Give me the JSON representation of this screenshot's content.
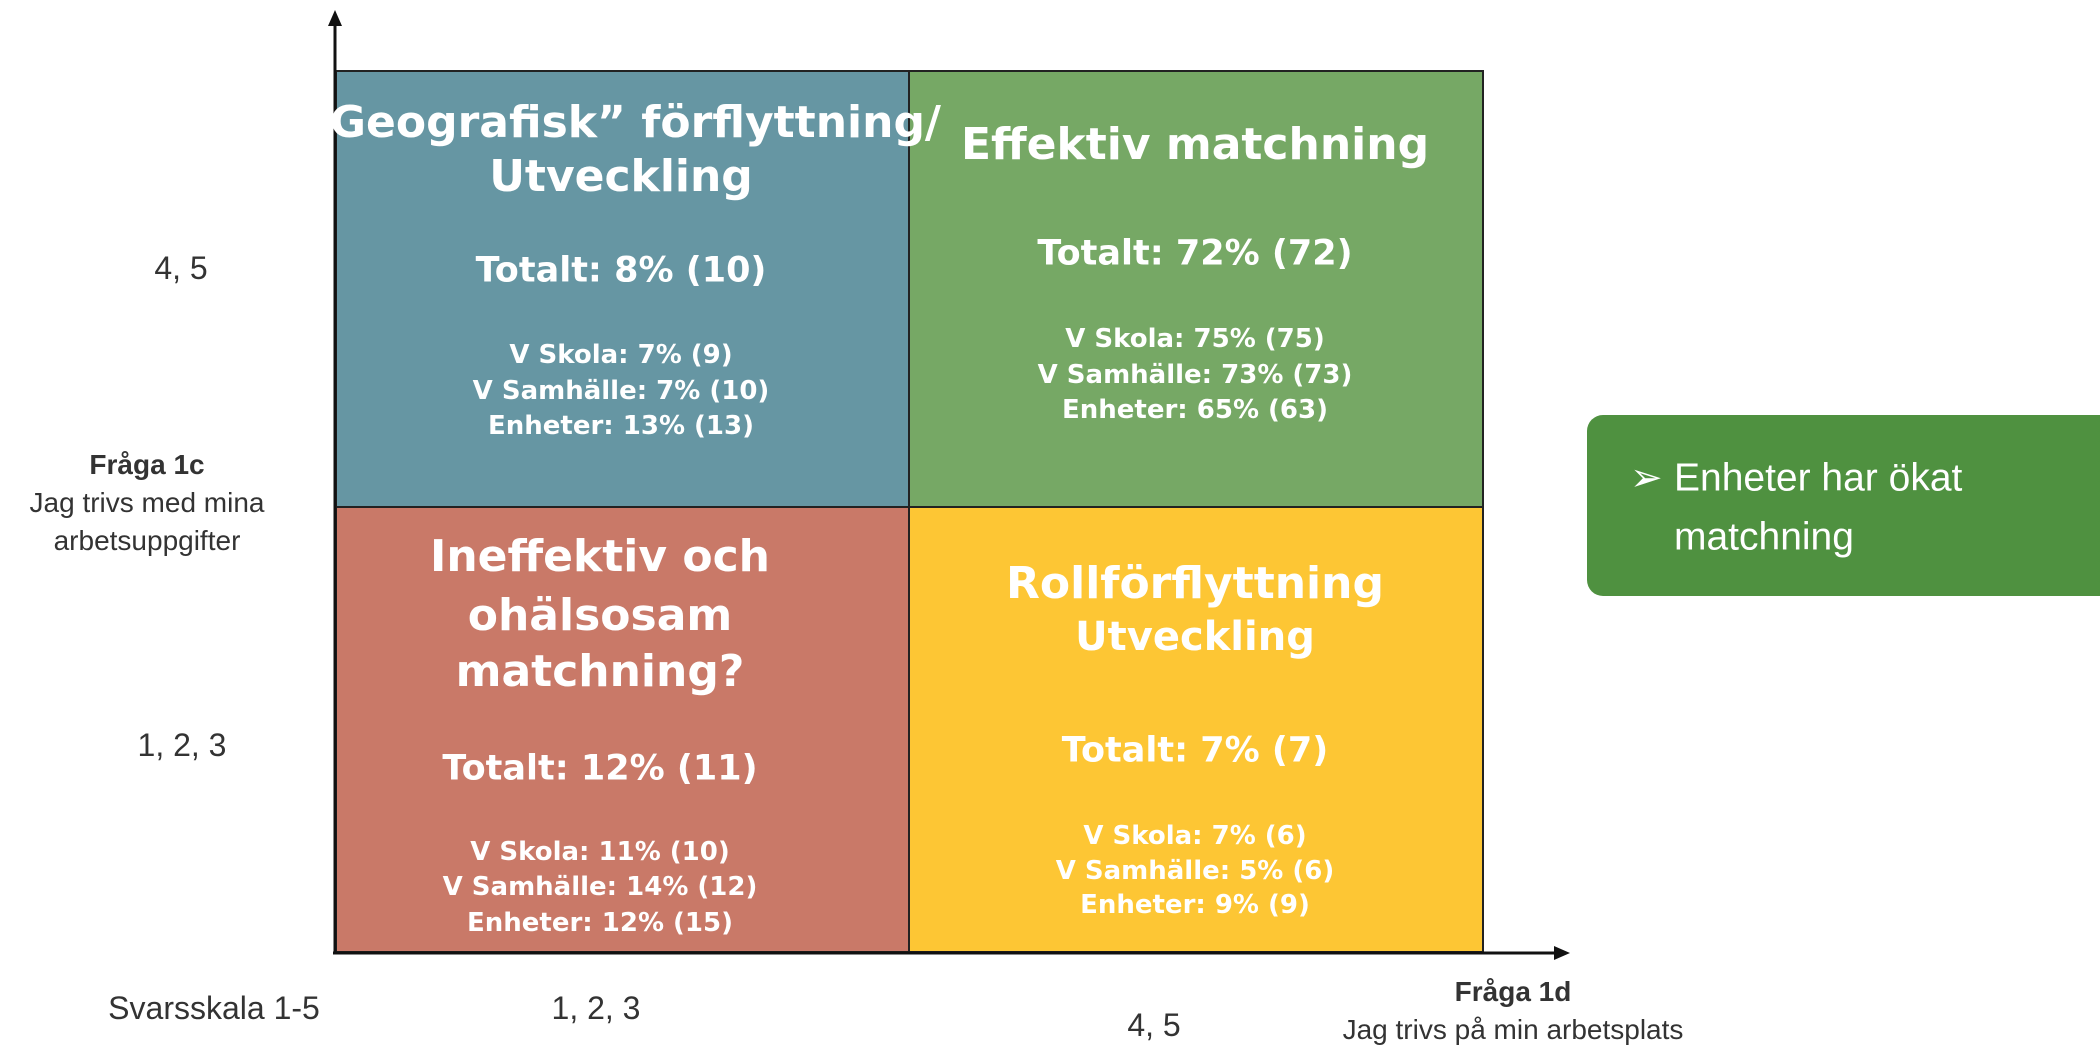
{
  "quadrants": [
    {
      "title": [
        "”Geografisk” förflyttning/",
        "Utveckling"
      ],
      "total": "Totalt: 8% (10)",
      "details": [
        "V Skola: 7% (9)",
        "V Samhälle: 7% (10)",
        "Enheter: 13% (13)"
      ]
    },
    {
      "title": [
        "Effektiv matchning"
      ],
      "total": "Totalt: 72% (72)",
      "details": [
        "V Skola: 75%  (75)",
        "V Samhälle: 73% (73)",
        "Enheter: 65% (63)"
      ]
    },
    {
      "title": [
        "Ineffektiv och",
        "ohälsosam",
        "matchning?"
      ],
      "total": "Totalt: 12% (11)",
      "details": [
        "V Skola: 11% (10)",
        "V Samhälle: 14% (12)",
        "Enheter: 12% (15)"
      ]
    },
    {
      "title": [
        "Rollförflyttning",
        "Utveckling"
      ],
      "total": "Totalt: 7% (7)",
      "details": [
        "V Skola: 7% (6)",
        "V Samhälle: 5% (6)",
        "Enheter: 9% (9)"
      ]
    }
  ],
  "y_axis": {
    "high": "4, 5",
    "low": "1, 2, 3",
    "question": "Fråga 1c",
    "description": [
      "Jag trivs med mina",
      "arbetsuppgifter"
    ]
  },
  "x_axis": {
    "scale": "Svarsskala 1-5",
    "low": "1, 2, 3",
    "high": "4, 5",
    "question": "Fråga 1d",
    "description": "Jag trivs på min arbetsplats"
  },
  "note": {
    "bullet": "➢",
    "lines": [
      "Enheter har ökat",
      "matchning"
    ]
  }
}
